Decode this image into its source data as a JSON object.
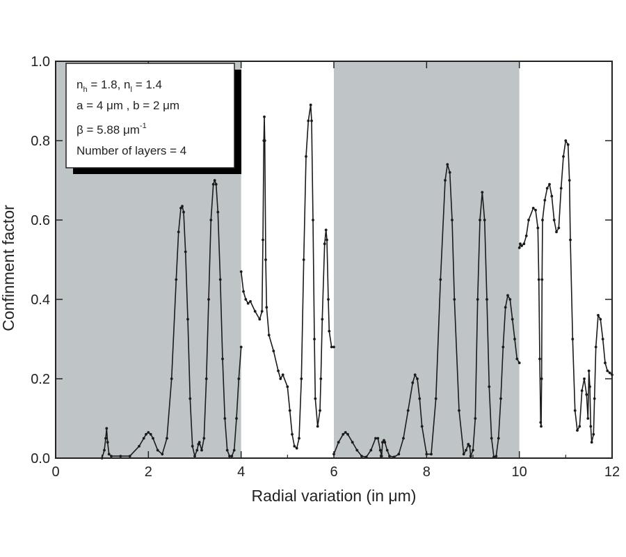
{
  "chart_data": {
    "type": "line",
    "title": "",
    "xlabel": "Radial variation (in μm)",
    "ylabel": "Confinment factor",
    "xlim": [
      0,
      12
    ],
    "ylim": [
      0,
      1.0
    ],
    "xticks": [
      "0",
      "2",
      "4",
      "6",
      "8",
      "10",
      "12"
    ],
    "yticks": [
      "0.0",
      "0.2",
      "0.4",
      "0.6",
      "0.8",
      "1.0"
    ],
    "grid": false,
    "shaded_regions": [
      [
        0,
        4
      ],
      [
        6,
        10
      ]
    ],
    "shade_color": "#bfc5c7",
    "line_color": "#1a1a1a",
    "annotation": {
      "line1": {
        "n": "n",
        "sub_h": "h",
        "mid": " = 1.8, n",
        "sub_l": "l",
        "end": " = 1.4"
      },
      "line2": "a = 4 μm , b = 2 μm",
      "line3": {
        "main": "β = 5.88 μm",
        "sup": "-1"
      },
      "line4": "Number of layers = 4"
    },
    "series": [
      {
        "x": [
          1.0,
          1.05,
          1.08,
          1.1,
          1.12,
          1.15,
          1.2,
          1.4,
          1.6,
          1.8,
          1.9,
          1.95,
          2.0,
          2.05,
          2.1,
          2.2,
          2.3,
          2.4,
          2.5,
          2.6,
          2.65,
          2.7,
          2.73,
          2.76,
          2.8,
          2.85,
          2.9,
          2.95,
          3.0,
          3.05,
          3.08,
          3.1,
          3.15,
          3.2,
          3.25,
          3.3,
          3.35,
          3.4,
          3.43,
          3.46,
          3.5,
          3.55,
          3.6,
          3.65,
          3.7,
          3.75,
          3.8,
          3.85,
          3.9,
          3.95,
          4.0
        ],
        "y": [
          0.0,
          0.02,
          0.05,
          0.075,
          0.04,
          0.01,
          0.005,
          0.005,
          0.005,
          0.03,
          0.05,
          0.06,
          0.065,
          0.06,
          0.05,
          0.02,
          0.01,
          0.05,
          0.2,
          0.45,
          0.57,
          0.63,
          0.635,
          0.62,
          0.52,
          0.35,
          0.15,
          0.03,
          0.005,
          0.02,
          0.035,
          0.04,
          0.02,
          0.05,
          0.2,
          0.4,
          0.6,
          0.69,
          0.7,
          0.69,
          0.62,
          0.45,
          0.25,
          0.1,
          0.02,
          0.005,
          0.005,
          0.02,
          0.1,
          0.2,
          0.28
        ]
      },
      {
        "x": [
          4.0,
          4.05,
          4.1,
          4.15,
          4.2,
          4.3,
          4.4,
          4.45,
          4.47,
          4.49,
          4.5,
          4.51,
          4.53,
          4.55,
          4.6,
          4.7,
          4.8,
          4.85,
          4.9,
          5.0,
          5.05,
          5.1,
          5.15,
          5.2,
          5.25,
          5.3,
          5.35,
          5.4,
          5.45,
          5.5,
          5.52,
          5.55,
          5.58,
          5.6,
          5.65,
          5.7,
          5.72,
          5.75,
          5.8,
          5.83,
          5.85,
          5.88,
          5.9,
          5.95,
          6.0
        ],
        "y": [
          0.47,
          0.42,
          0.4,
          0.39,
          0.395,
          0.37,
          0.35,
          0.37,
          0.55,
          0.8,
          0.86,
          0.8,
          0.5,
          0.38,
          0.31,
          0.27,
          0.22,
          0.2,
          0.21,
          0.18,
          0.12,
          0.06,
          0.03,
          0.025,
          0.05,
          0.2,
          0.5,
          0.76,
          0.85,
          0.89,
          0.85,
          0.6,
          0.3,
          0.15,
          0.08,
          0.12,
          0.2,
          0.35,
          0.54,
          0.575,
          0.55,
          0.4,
          0.32,
          0.28,
          0.28
        ]
      },
      {
        "x": [
          6.0,
          6.1,
          6.2,
          6.25,
          6.3,
          6.4,
          6.5,
          6.6,
          6.7,
          6.8,
          6.9,
          6.95,
          7.0,
          7.03,
          7.05,
          7.08,
          7.1,
          7.15,
          7.2,
          7.3,
          7.4,
          7.5,
          7.6,
          7.7,
          7.75,
          7.8,
          7.85,
          7.9,
          8.0,
          8.1,
          8.2,
          8.3,
          8.4,
          8.45,
          8.5,
          8.55,
          8.6,
          8.7,
          8.8,
          8.85,
          8.9,
          8.93,
          8.95,
          9.0,
          9.05,
          9.1,
          9.15,
          9.2,
          9.25,
          9.3,
          9.35,
          9.4,
          9.45,
          9.5,
          9.55,
          9.6,
          9.65,
          9.7,
          9.75,
          9.8,
          9.85,
          9.9,
          9.95,
          10.0
        ],
        "y": [
          0.01,
          0.04,
          0.06,
          0.065,
          0.06,
          0.04,
          0.02,
          0.005,
          0.003,
          0.02,
          0.05,
          0.05,
          0.02,
          0.005,
          0.04,
          0.045,
          0.04,
          0.02,
          0.005,
          0.003,
          0.01,
          0.05,
          0.12,
          0.19,
          0.21,
          0.2,
          0.15,
          0.08,
          0.01,
          0.01,
          0.15,
          0.45,
          0.7,
          0.74,
          0.72,
          0.6,
          0.4,
          0.12,
          0.01,
          0.02,
          0.035,
          0.03,
          0.005,
          0.02,
          0.1,
          0.4,
          0.6,
          0.67,
          0.6,
          0.4,
          0.18,
          0.05,
          0.003,
          0.005,
          0.05,
          0.15,
          0.28,
          0.38,
          0.41,
          0.4,
          0.35,
          0.3,
          0.25,
          0.24
        ]
      },
      {
        "x": [
          10.0,
          10.02,
          10.05,
          10.1,
          10.15,
          10.2,
          10.3,
          10.35,
          10.4,
          10.42,
          10.44,
          10.46,
          10.47,
          10.48,
          10.49,
          10.5,
          10.55,
          10.6,
          10.65,
          10.7,
          10.75,
          10.8,
          10.85,
          10.9,
          10.95,
          11.0,
          11.05,
          11.08,
          11.1,
          11.15,
          11.2,
          11.25,
          11.3,
          11.35,
          11.4,
          11.45,
          11.48,
          11.5,
          11.52,
          11.54,
          11.56,
          11.6,
          11.62,
          11.65,
          11.7,
          11.75,
          11.8,
          11.85,
          11.9,
          11.95,
          12.0
        ],
        "y": [
          0.53,
          0.54,
          0.535,
          0.54,
          0.56,
          0.6,
          0.63,
          0.625,
          0.58,
          0.45,
          0.25,
          0.09,
          0.08,
          0.2,
          0.45,
          0.6,
          0.65,
          0.68,
          0.69,
          0.66,
          0.6,
          0.57,
          0.58,
          0.68,
          0.76,
          0.8,
          0.79,
          0.7,
          0.55,
          0.3,
          0.12,
          0.07,
          0.08,
          0.17,
          0.2,
          0.16,
          0.1,
          0.22,
          0.18,
          0.08,
          0.04,
          0.06,
          0.15,
          0.28,
          0.36,
          0.35,
          0.3,
          0.24,
          0.22,
          0.215,
          0.21
        ]
      }
    ]
  }
}
